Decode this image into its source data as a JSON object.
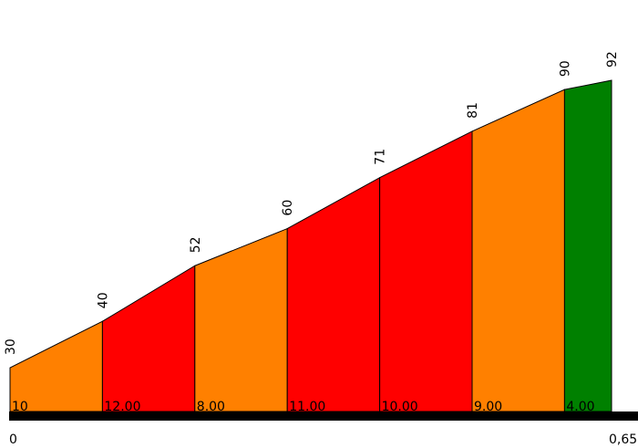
{
  "chart_data": {
    "type": "area",
    "title": "",
    "xlabel": "",
    "ylabel": "",
    "x_tick_labels": [
      "0",
      "0,65"
    ],
    "xlim": [
      0,
      0.65
    ],
    "ylim": [
      0,
      92
    ],
    "grid": false,
    "legend": "none",
    "elevation_labels": [
      "30",
      "40",
      "52",
      "60",
      "71",
      "81",
      "90",
      "92"
    ],
    "elevation_values": [
      30,
      40,
      52,
      60,
      71,
      81,
      90,
      92
    ],
    "segments": [
      {
        "gradient_label": "10",
        "color": "#ff8000"
      },
      {
        "gradient_label": "12.00",
        "color": "#ff0000"
      },
      {
        "gradient_label": "8.00",
        "color": "#ff8000"
      },
      {
        "gradient_label": "11.00",
        "color": "#ff0000"
      },
      {
        "gradient_label": "10.00",
        "color": "#ff0000"
      },
      {
        "gradient_label": "9.00",
        "color": "#ff8000"
      },
      {
        "gradient_label": "4.00",
        "color": "#008000"
      }
    ]
  }
}
